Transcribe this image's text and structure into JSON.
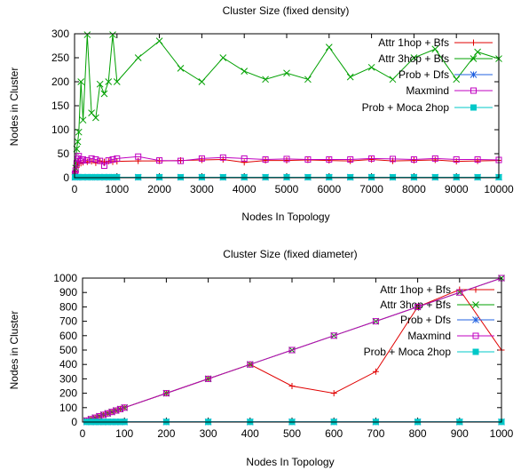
{
  "chart_data": [
    {
      "type": "line",
      "title": "Cluster Size (fixed density)",
      "xlabel": "Nodes In Topology",
      "ylabel": "Nodes in Cluster",
      "xlim": [
        0,
        10000
      ],
      "ylim": [
        0,
        300
      ],
      "xticks": [
        0,
        1000,
        2000,
        3000,
        4000,
        5000,
        6000,
        7000,
        8000,
        9000,
        10000
      ],
      "yticks": [
        0,
        50,
        100,
        150,
        200,
        250,
        300
      ],
      "grid": false,
      "legend_position": "top-right",
      "series": [
        {
          "name": "Attr 1hop + Bfs",
          "color": "#e00000",
          "marker": "plus",
          "points": [
            [
              10,
              6
            ],
            [
              25,
              12
            ],
            [
              50,
              22
            ],
            [
              75,
              30
            ],
            [
              100,
              33
            ],
            [
              150,
              30
            ],
            [
              200,
              32
            ],
            [
              300,
              33
            ],
            [
              400,
              34
            ],
            [
              500,
              31
            ],
            [
              600,
              35
            ],
            [
              700,
              33
            ],
            [
              800,
              34
            ],
            [
              900,
              33
            ],
            [
              1000,
              34
            ],
            [
              1500,
              35
            ],
            [
              2000,
              35
            ],
            [
              2500,
              36
            ],
            [
              3000,
              37
            ],
            [
              3500,
              38
            ],
            [
              4000,
              32
            ],
            [
              4500,
              36
            ],
            [
              5000,
              36
            ],
            [
              5500,
              37
            ],
            [
              6000,
              36
            ],
            [
              6500,
              35
            ],
            [
              7000,
              38
            ],
            [
              7500,
              35
            ],
            [
              8000,
              36
            ],
            [
              8500,
              37
            ],
            [
              9000,
              34
            ],
            [
              9500,
              35
            ],
            [
              10000,
              36
            ]
          ]
        },
        {
          "name": "Attr 3hop + Bfs",
          "color": "#00a000",
          "marker": "cross",
          "points": [
            [
              10,
              5
            ],
            [
              25,
              20
            ],
            [
              50,
              60
            ],
            [
              75,
              75
            ],
            [
              100,
              95
            ],
            [
              150,
              200
            ],
            [
              200,
              120
            ],
            [
              300,
              298
            ],
            [
              400,
              135
            ],
            [
              500,
              125
            ],
            [
              600,
              195
            ],
            [
              700,
              175
            ],
            [
              800,
              200
            ],
            [
              900,
              298
            ],
            [
              1000,
              200
            ],
            [
              1500,
              250
            ],
            [
              2000,
              285
            ],
            [
              2500,
              228
            ],
            [
              3000,
              200
            ],
            [
              3500,
              250
            ],
            [
              4000,
              222
            ],
            [
              4500,
              205
            ],
            [
              5000,
              218
            ],
            [
              5500,
              205
            ],
            [
              6000,
              272
            ],
            [
              6500,
              210
            ],
            [
              7000,
              230
            ],
            [
              7500,
              205
            ],
            [
              8000,
              250
            ],
            [
              8500,
              268
            ],
            [
              9000,
              205
            ],
            [
              9500,
              262
            ],
            [
              10000,
              248
            ]
          ]
        },
        {
          "name": "Prob + Dfs",
          "color": "#2060e0",
          "marker": "star",
          "points": [
            [
              10,
              1
            ],
            [
              50,
              1
            ],
            [
              100,
              1
            ],
            [
              200,
              1
            ],
            [
              300,
              1
            ],
            [
              400,
              1
            ],
            [
              500,
              1
            ],
            [
              600,
              1
            ],
            [
              700,
              1
            ],
            [
              800,
              1
            ],
            [
              900,
              1
            ],
            [
              1000,
              1
            ],
            [
              1500,
              1
            ],
            [
              2000,
              1
            ],
            [
              2500,
              1
            ],
            [
              3000,
              1
            ],
            [
              3500,
              1
            ],
            [
              4000,
              1
            ],
            [
              4500,
              1
            ],
            [
              5000,
              1
            ],
            [
              5500,
              1
            ],
            [
              6000,
              1
            ],
            [
              6500,
              1
            ],
            [
              7000,
              1
            ],
            [
              7500,
              1
            ],
            [
              8000,
              1
            ],
            [
              8500,
              1
            ],
            [
              9000,
              1
            ],
            [
              9500,
              1
            ],
            [
              10000,
              1
            ]
          ]
        },
        {
          "name": "Maxmind",
          "color": "#c000c0",
          "marker": "square-open",
          "points": [
            [
              10,
              8
            ],
            [
              25,
              15
            ],
            [
              50,
              30
            ],
            [
              75,
              40
            ],
            [
              100,
              45
            ],
            [
              150,
              35
            ],
            [
              200,
              38
            ],
            [
              300,
              36
            ],
            [
              400,
              40
            ],
            [
              500,
              38
            ],
            [
              600,
              35
            ],
            [
              700,
              25
            ],
            [
              800,
              36
            ],
            [
              900,
              38
            ],
            [
              1000,
              40
            ],
            [
              1500,
              44
            ],
            [
              2000,
              36
            ],
            [
              2500,
              35
            ],
            [
              3000,
              40
            ],
            [
              3500,
              42
            ],
            [
              4000,
              40
            ],
            [
              4500,
              38
            ],
            [
              5000,
              39
            ],
            [
              5500,
              38
            ],
            [
              6000,
              38
            ],
            [
              6500,
              38
            ],
            [
              7000,
              40
            ],
            [
              7500,
              39
            ],
            [
              8000,
              38
            ],
            [
              8500,
              40
            ],
            [
              9000,
              38
            ],
            [
              9500,
              38
            ],
            [
              10000,
              37
            ]
          ]
        },
        {
          "name": "Prob + Moca 2hop",
          "color": "#00c8c8",
          "marker": "square-filled",
          "points": [
            [
              10,
              1
            ],
            [
              50,
              1
            ],
            [
              100,
              1
            ],
            [
              150,
              1
            ],
            [
              200,
              1
            ],
            [
              250,
              1
            ],
            [
              300,
              1
            ],
            [
              350,
              1
            ],
            [
              400,
              1
            ],
            [
              450,
              1
            ],
            [
              500,
              1
            ],
            [
              550,
              1
            ],
            [
              600,
              1
            ],
            [
              650,
              1
            ],
            [
              700,
              1
            ],
            [
              750,
              1
            ],
            [
              800,
              1
            ],
            [
              850,
              1
            ],
            [
              900,
              1
            ],
            [
              950,
              1
            ],
            [
              1000,
              1
            ],
            [
              1500,
              1
            ],
            [
              2000,
              1
            ],
            [
              2500,
              1
            ],
            [
              3000,
              1
            ],
            [
              3500,
              1
            ],
            [
              4000,
              1
            ],
            [
              4500,
              1
            ],
            [
              5000,
              1
            ],
            [
              5500,
              1
            ],
            [
              6000,
              1
            ],
            [
              6500,
              1
            ],
            [
              7000,
              1
            ],
            [
              7500,
              1
            ],
            [
              8000,
              1
            ],
            [
              8500,
              1
            ],
            [
              9000,
              1
            ],
            [
              9500,
              1
            ],
            [
              10000,
              1
            ]
          ]
        }
      ]
    },
    {
      "type": "line",
      "title": "Cluster Size (fixed diameter)",
      "xlabel": "Nodes In Topology",
      "ylabel": "Nodes in Cluster",
      "xlim": [
        0,
        1000
      ],
      "ylim": [
        0,
        1000
      ],
      "xticks": [
        0,
        100,
        200,
        300,
        400,
        500,
        600,
        700,
        800,
        900,
        1000
      ],
      "yticks": [
        0,
        100,
        200,
        300,
        400,
        500,
        600,
        700,
        800,
        900,
        1000
      ],
      "grid": false,
      "legend_position": "top-right",
      "series": [
        {
          "name": "Attr 1hop + Bfs",
          "color": "#e00000",
          "marker": "plus",
          "points": [
            [
              10,
              10
            ],
            [
              20,
              20
            ],
            [
              30,
              30
            ],
            [
              40,
              40
            ],
            [
              50,
              50
            ],
            [
              60,
              60
            ],
            [
              70,
              70
            ],
            [
              80,
              80
            ],
            [
              90,
              90
            ],
            [
              100,
              100
            ],
            [
              200,
              200
            ],
            [
              300,
              300
            ],
            [
              400,
              400
            ],
            [
              500,
              250
            ],
            [
              600,
              200
            ],
            [
              700,
              350
            ],
            [
              800,
              800
            ],
            [
              900,
              920
            ],
            [
              1000,
              500
            ]
          ]
        },
        {
          "name": "Attr 3hop + Bfs",
          "color": "#00a000",
          "marker": "cross",
          "points": [
            [
              10,
              10
            ],
            [
              20,
              20
            ],
            [
              30,
              30
            ],
            [
              40,
              40
            ],
            [
              50,
              50
            ],
            [
              60,
              60
            ],
            [
              70,
              70
            ],
            [
              80,
              80
            ],
            [
              90,
              90
            ],
            [
              100,
              100
            ],
            [
              200,
              200
            ],
            [
              300,
              300
            ],
            [
              400,
              400
            ],
            [
              500,
              500
            ],
            [
              600,
              600
            ],
            [
              700,
              700
            ],
            [
              800,
              800
            ],
            [
              900,
              900
            ],
            [
              1000,
              1000
            ]
          ]
        },
        {
          "name": "Prob + Dfs",
          "color": "#2060e0",
          "marker": "star",
          "points": [
            [
              10,
              1
            ],
            [
              20,
              1
            ],
            [
              30,
              1
            ],
            [
              40,
              1
            ],
            [
              50,
              1
            ],
            [
              60,
              1
            ],
            [
              70,
              1
            ],
            [
              80,
              1
            ],
            [
              90,
              1
            ],
            [
              100,
              1
            ],
            [
              200,
              1
            ],
            [
              300,
              1
            ],
            [
              400,
              1
            ],
            [
              500,
              1
            ],
            [
              600,
              1
            ],
            [
              700,
              1
            ],
            [
              800,
              1
            ],
            [
              900,
              1
            ],
            [
              1000,
              1
            ]
          ]
        },
        {
          "name": "Maxmind",
          "color": "#c000c0",
          "marker": "square-open",
          "points": [
            [
              10,
              10
            ],
            [
              20,
              20
            ],
            [
              30,
              30
            ],
            [
              40,
              40
            ],
            [
              50,
              50
            ],
            [
              60,
              60
            ],
            [
              70,
              70
            ],
            [
              80,
              80
            ],
            [
              90,
              90
            ],
            [
              100,
              100
            ],
            [
              200,
              200
            ],
            [
              300,
              300
            ],
            [
              400,
              400
            ],
            [
              500,
              500
            ],
            [
              600,
              600
            ],
            [
              700,
              700
            ],
            [
              800,
              800
            ],
            [
              900,
              900
            ],
            [
              1000,
              1000
            ]
          ]
        },
        {
          "name": "Prob + Moca 2hop",
          "color": "#00c8c8",
          "marker": "square-filled",
          "points": [
            [
              10,
              1
            ],
            [
              20,
              1
            ],
            [
              30,
              1
            ],
            [
              40,
              1
            ],
            [
              50,
              1
            ],
            [
              60,
              1
            ],
            [
              70,
              1
            ],
            [
              80,
              1
            ],
            [
              90,
              1
            ],
            [
              100,
              1
            ],
            [
              200,
              1
            ],
            [
              300,
              1
            ],
            [
              400,
              1
            ],
            [
              500,
              1
            ],
            [
              600,
              1
            ],
            [
              700,
              1
            ],
            [
              800,
              1
            ],
            [
              900,
              1
            ],
            [
              1000,
              1
            ]
          ]
        }
      ]
    }
  ]
}
